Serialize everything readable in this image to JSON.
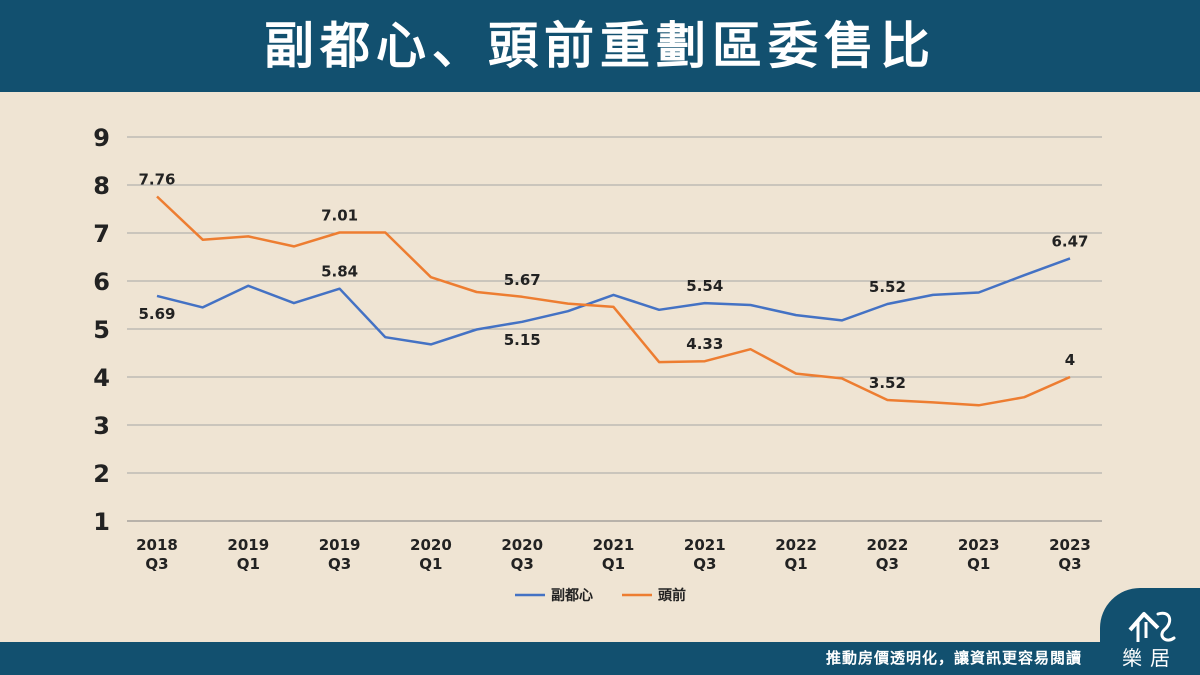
{
  "header": {
    "title": "副都心、頭前重劃區委售比"
  },
  "footer": {
    "tagline": "推動房價透明化，讓資訊更容易閱讀",
    "logo_text": "樂居"
  },
  "colors": {
    "header_bg": "#12506f",
    "background": "#efe4d3",
    "fuduxin": "#4472c4",
    "touqian": "#ed7d31",
    "grid": "#a6a6a6"
  },
  "chart_data": {
    "type": "line",
    "title": "",
    "xlabel": "",
    "ylabel": "",
    "ylim": [
      1,
      9
    ],
    "yticks": [
      "1",
      "2",
      "3",
      "4",
      "5",
      "6",
      "7",
      "8",
      "9"
    ],
    "x_tick_labels": [
      [
        "2018",
        "Q3"
      ],
      [
        "2019",
        "Q1"
      ],
      [
        "2019",
        "Q3"
      ],
      [
        "2020",
        "Q1"
      ],
      [
        "2020",
        "Q3"
      ],
      [
        "2021",
        "Q1"
      ],
      [
        "2021",
        "Q3"
      ],
      [
        "2022",
        "Q1"
      ],
      [
        "2022",
        "Q3"
      ],
      [
        "2023",
        "Q1"
      ],
      [
        "2023",
        "Q3"
      ]
    ],
    "categories": [
      "2018Q3",
      "2018Q4",
      "2019Q1",
      "2019Q2",
      "2019Q3",
      "2019Q4",
      "2020Q1",
      "2020Q2",
      "2020Q3",
      "2020Q4",
      "2021Q1",
      "2021Q2",
      "2021Q3",
      "2021Q4",
      "2022Q1",
      "2022Q2",
      "2022Q3",
      "2022Q4",
      "2023Q1",
      "2023Q2",
      "2023Q3"
    ],
    "grid": true,
    "legend": "bottom",
    "series": [
      {
        "name": "副都心",
        "color": "#4472c4",
        "values": [
          5.69,
          5.45,
          5.9,
          5.54,
          5.84,
          4.83,
          4.68,
          4.99,
          5.15,
          5.37,
          5.71,
          5.4,
          5.54,
          5.5,
          5.29,
          5.18,
          5.52,
          5.71,
          5.76,
          6.12,
          6.47
        ],
        "labels": [
          {
            "i": 0,
            "text": "5.69",
            "pos": "below"
          },
          {
            "i": 4,
            "text": "5.84",
            "pos": "above"
          },
          {
            "i": 8,
            "text": "5.15",
            "pos": "below"
          },
          {
            "i": 12,
            "text": "5.54",
            "pos": "above"
          },
          {
            "i": 16,
            "text": "5.52",
            "pos": "above"
          },
          {
            "i": 20,
            "text": "6.47",
            "pos": "above"
          }
        ]
      },
      {
        "name": "頭前",
        "color": "#ed7d31",
        "values": [
          7.76,
          6.86,
          6.93,
          6.72,
          7.01,
          7.01,
          6.08,
          5.77,
          5.67,
          5.53,
          5.46,
          4.31,
          4.33,
          4.58,
          4.07,
          3.97,
          3.52,
          3.47,
          3.41,
          3.58,
          4.0
        ],
        "labels": [
          {
            "i": 0,
            "text": "7.76",
            "pos": "above"
          },
          {
            "i": 4,
            "text": "7.01",
            "pos": "above"
          },
          {
            "i": 8,
            "text": "5.67",
            "pos": "above"
          },
          {
            "i": 12,
            "text": "4.33",
            "pos": "above"
          },
          {
            "i": 16,
            "text": "3.52",
            "pos": "above"
          },
          {
            "i": 20,
            "text": "4",
            "pos": "above"
          }
        ]
      }
    ]
  }
}
